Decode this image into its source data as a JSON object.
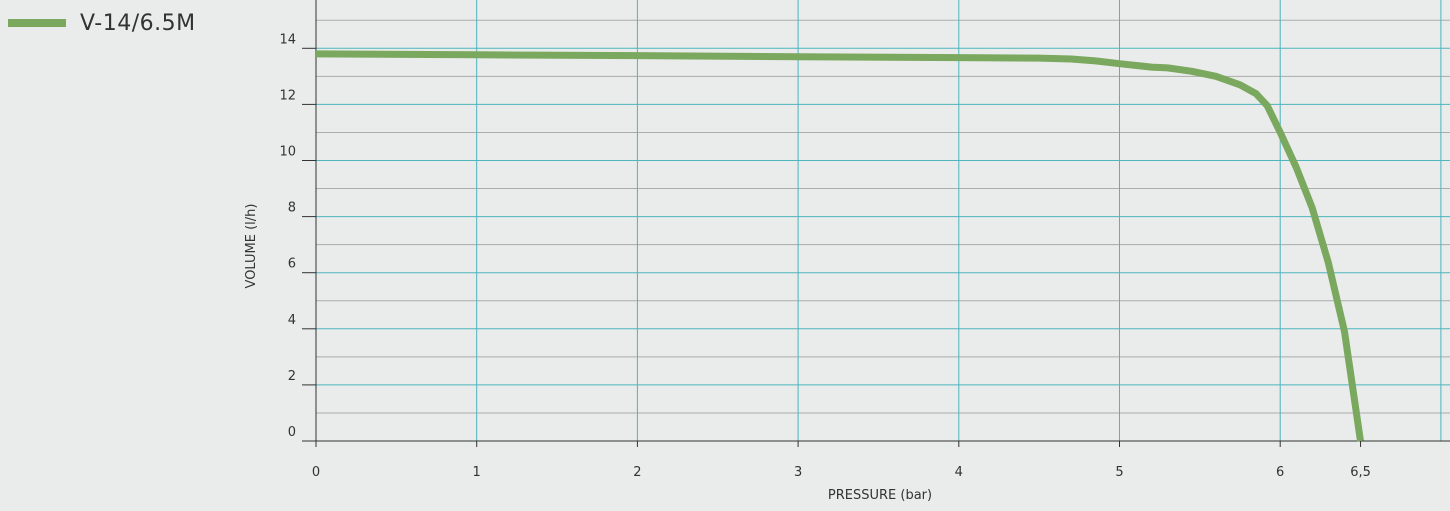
{
  "chart_data": {
    "type": "line",
    "title": "",
    "xlabel": "PRESSURE  (bar)",
    "ylabel": "VOLUME  (l/h)",
    "xlim": [
      0,
      7.2
    ],
    "ylim": [
      0,
      15.5
    ],
    "x_ticks": [
      {
        "value": 0,
        "label": "0"
      },
      {
        "value": 1,
        "label": "1"
      },
      {
        "value": 2,
        "label": "2"
      },
      {
        "value": 3,
        "label": "3"
      },
      {
        "value": 4,
        "label": "4"
      },
      {
        "value": 5,
        "label": "5"
      },
      {
        "value": 6,
        "label": "6"
      },
      {
        "value": 6.5,
        "label": "6,5"
      }
    ],
    "x_gridlines": [
      1,
      2,
      3,
      4,
      5,
      6,
      7
    ],
    "y_ticks": [
      {
        "value": 0,
        "label": "0"
      },
      {
        "value": 2,
        "label": "2"
      },
      {
        "value": 4,
        "label": "4"
      },
      {
        "value": 6,
        "label": "6"
      },
      {
        "value": 8,
        "label": "8"
      },
      {
        "value": 10,
        "label": "10"
      },
      {
        "value": 12,
        "label": "12"
      },
      {
        "value": 14,
        "label": "14"
      }
    ],
    "y_minor_gridlines": [
      1,
      3,
      5,
      7,
      9,
      11,
      13,
      15
    ],
    "grid": true,
    "legend_position": "top-left",
    "series": [
      {
        "name": "V-14/6.5M",
        "color": "#7aa85e",
        "points": [
          [
            0,
            13.8
          ],
          [
            1,
            13.77
          ],
          [
            2,
            13.74
          ],
          [
            3,
            13.7
          ],
          [
            4,
            13.67
          ],
          [
            4.5,
            13.65
          ],
          [
            4.7,
            13.62
          ],
          [
            4.85,
            13.55
          ],
          [
            5,
            13.45
          ],
          [
            5.2,
            13.33
          ],
          [
            5.3,
            13.3
          ],
          [
            5.45,
            13.18
          ],
          [
            5.6,
            13.0
          ],
          [
            5.75,
            12.7
          ],
          [
            5.85,
            12.38
          ],
          [
            5.92,
            11.95
          ],
          [
            6,
            11.0
          ],
          [
            6.1,
            9.75
          ],
          [
            6.2,
            8.3
          ],
          [
            6.3,
            6.35
          ],
          [
            6.4,
            3.9
          ],
          [
            6.5,
            0.0
          ]
        ]
      }
    ]
  },
  "legend": {
    "label": "V-14/6.5M",
    "color": "#7aa85e"
  },
  "colors": {
    "background": "#e9ecea",
    "grid_major": "#4cb5bd",
    "grid_minor": "#a9adab"
  }
}
